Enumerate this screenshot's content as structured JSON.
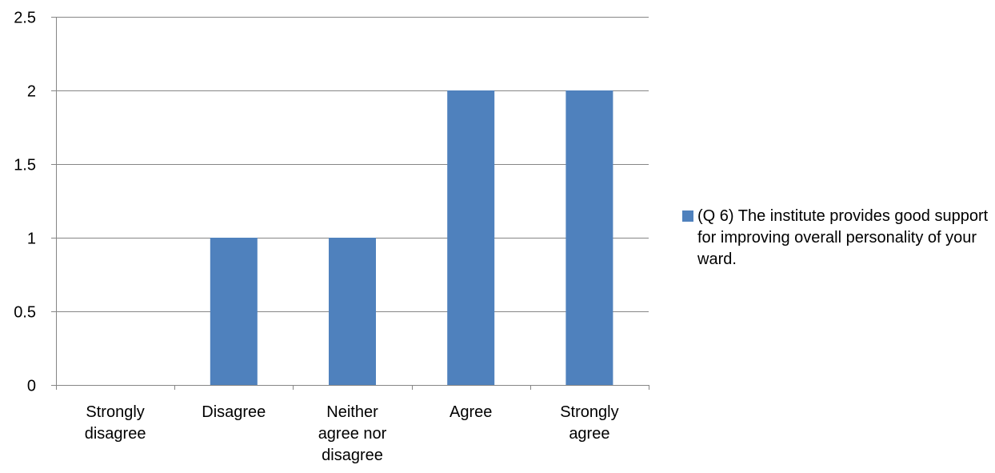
{
  "chart_data": {
    "type": "bar",
    "categories": [
      [
        "Strongly",
        "disagree"
      ],
      [
        "Disagree"
      ],
      [
        "Neither",
        "agree nor",
        "disagree"
      ],
      [
        "Agree"
      ],
      [
        "Strongly",
        "agree"
      ]
    ],
    "series": [
      {
        "name": "(Q 6) The institute provides good support for improving overall personality of your ward.",
        "values": [
          0,
          1,
          1,
          2,
          2
        ],
        "color": "#4f81bd"
      }
    ],
    "ylim": [
      0,
      2.5
    ],
    "yticks": [
      0,
      0.5,
      1,
      1.5,
      2,
      2.5
    ],
    "ytick_labels": [
      "0",
      "0.5",
      "1",
      "1.5",
      "2",
      "2.5"
    ],
    "grid": true,
    "legend_position": "right"
  }
}
